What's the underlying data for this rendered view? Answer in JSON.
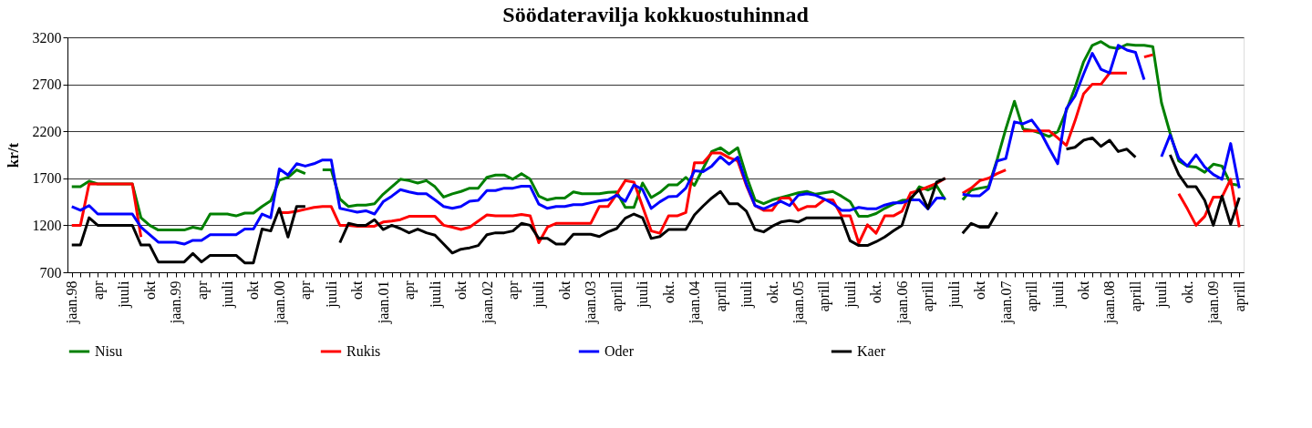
{
  "chart_data": {
    "type": "line",
    "title": "Söödateravilja kokkuostuhinnad",
    "ylabel": "kr/t",
    "categories": [
      "jaan.98",
      null,
      null,
      "apr",
      null,
      null,
      "juuli",
      null,
      null,
      "okt",
      null,
      null,
      "jaan.99",
      null,
      null,
      "apr",
      null,
      null,
      "juuli",
      null,
      null,
      "okt",
      null,
      null,
      "jaan.00",
      null,
      null,
      "apr",
      null,
      null,
      "juuli",
      null,
      null,
      "okt",
      null,
      null,
      "jaan.01",
      null,
      null,
      "apr",
      null,
      null,
      "juuli",
      null,
      null,
      "okt",
      null,
      null,
      "jaan.02",
      null,
      null,
      "apr",
      null,
      null,
      "juuli",
      null,
      null,
      "okt",
      null,
      null,
      "jaan.03",
      null,
      null,
      "aprill",
      null,
      null,
      "juuli",
      null,
      null,
      "okt.",
      null,
      null,
      "jaan.04",
      null,
      null,
      "aprill",
      null,
      null,
      "juuli",
      null,
      null,
      "okt.",
      null,
      null,
      "jaan.05",
      null,
      null,
      "aprill",
      null,
      null,
      "juuli",
      null,
      null,
      "okt.",
      null,
      null,
      "jaan.06",
      null,
      null,
      "aprill",
      null,
      null,
      "juuli",
      null,
      null,
      "okt",
      null,
      null,
      "jaan.07",
      null,
      null,
      "aprill",
      null,
      null,
      "juuli",
      null,
      null,
      "okt",
      null,
      null,
      "jaan.08",
      null,
      null,
      "aprill",
      null,
      null,
      "juuli",
      null,
      null,
      "okt.",
      null,
      null,
      "jaan.09",
      null,
      null,
      "aprill"
    ],
    "ylim": [
      700,
      3200
    ],
    "yticks": [
      700,
      1200,
      1700,
      2200,
      2700,
      3200
    ],
    "grid": "y",
    "legend": "bottom",
    "series": [
      {
        "name": "Nisu",
        "color": "#008000",
        "values": [
          1610,
          1610,
          1670,
          1640,
          1640,
          1640,
          1640,
          1640,
          1280,
          1200,
          1150,
          1150,
          1150,
          1150,
          1180,
          1160,
          1320,
          1320,
          1320,
          1300,
          1330,
          1330,
          1400,
          1460,
          1680,
          1710,
          1790,
          1750,
          null,
          1790,
          1790,
          1480,
          1400,
          1415,
          1415,
          1430,
          1530,
          1610,
          1690,
          1675,
          1650,
          1675,
          1610,
          1500,
          1535,
          1560,
          1595,
          1595,
          1710,
          1735,
          1735,
          1690,
          1750,
          1690,
          1510,
          1470,
          1490,
          1490,
          1555,
          1535,
          1535,
          1535,
          1550,
          1555,
          1390,
          1390,
          1650,
          1495,
          1550,
          1630,
          1630,
          1710,
          1625,
          1805,
          1985,
          2025,
          1960,
          2025,
          1725,
          1470,
          1430,
          1470,
          1495,
          1520,
          1545,
          1560,
          1530,
          1545,
          1560,
          1510,
          1450,
          1295,
          1295,
          1325,
          1380,
          1425,
          1465,
          1470,
          1610,
          1575,
          1620,
          1470,
          null,
          1470,
          1575,
          1595,
          1610,
          1900,
          2225,
          2520,
          2225,
          2210,
          2180,
          2145,
          2195,
          2420,
          2665,
          2940,
          3115,
          3155,
          3095,
          3080,
          3125,
          3115,
          3115,
          3100,
          2505,
          2180,
          1885,
          1830,
          1820,
          1765,
          1850,
          1830,
          1640,
          1625
        ]
      },
      {
        "name": "Rukis",
        "color": "#ff0000",
        "values": [
          1200,
          1200,
          1640,
          1640,
          1640,
          1640,
          1640,
          1640,
          1075,
          null,
          null,
          null,
          null,
          null,
          null,
          null,
          null,
          null,
          null,
          null,
          null,
          null,
          null,
          null,
          1335,
          1335,
          1350,
          1370,
          1390,
          1400,
          1400,
          1200,
          1200,
          1190,
          1190,
          1190,
          1235,
          1245,
          1260,
          1295,
          1295,
          1295,
          1295,
          1200,
          1180,
          1155,
          1180,
          1245,
          1310,
          1300,
          1300,
          1300,
          1315,
          1300,
          1015,
          1180,
          1220,
          1220,
          1220,
          1220,
          1220,
          1400,
          1400,
          1530,
          1675,
          1660,
          1400,
          1140,
          1115,
          1300,
          1300,
          1335,
          1865,
          1865,
          1970,
          1970,
          1920,
          1885,
          1625,
          1410,
          1360,
          1360,
          1490,
          1490,
          1360,
          1400,
          1400,
          1470,
          1470,
          1300,
          1300,
          1010,
          1205,
          1115,
          1300,
          1300,
          1350,
          1545,
          1570,
          1610,
          1645,
          1700,
          null,
          1540,
          1595,
          1675,
          1700,
          1750,
          1790,
          null,
          2205,
          2205,
          2205,
          2205,
          2130,
          2050,
          2310,
          2600,
          2700,
          2700,
          2820,
          2820,
          2820,
          null,
          2990,
          3015,
          null,
          null,
          1535,
          1375,
          1200,
          1295,
          1500,
          1500,
          1690,
          1180
        ]
      },
      {
        "name": "Oder",
        "color": "#0000ff",
        "values": [
          1400,
          1360,
          1410,
          1320,
          1320,
          1320,
          1320,
          1320,
          1180,
          1100,
          1020,
          1020,
          1020,
          1000,
          1040,
          1040,
          1100,
          1100,
          1100,
          1100,
          1160,
          1160,
          1320,
          1280,
          1800,
          1735,
          1855,
          1830,
          1855,
          1895,
          1895,
          1380,
          1360,
          1340,
          1355,
          1320,
          1450,
          1510,
          1580,
          1555,
          1535,
          1535,
          1470,
          1400,
          1380,
          1400,
          1455,
          1465,
          1570,
          1570,
          1595,
          1595,
          1615,
          1615,
          1425,
          1380,
          1400,
          1400,
          1420,
          1420,
          1440,
          1460,
          1470,
          1520,
          1455,
          1630,
          1580,
          1380,
          1450,
          1505,
          1510,
          1595,
          1780,
          1770,
          1830,
          1930,
          1850,
          1925,
          1640,
          1410,
          1375,
          1415,
          1455,
          1410,
          1520,
          1535,
          1520,
          1480,
          1430,
          1360,
          1360,
          1390,
          1375,
          1375,
          1415,
          1440,
          1440,
          1470,
          1470,
          1375,
          1490,
          1490,
          null,
          1530,
          1515,
          1515,
          1590,
          1885,
          1910,
          2300,
          2280,
          2320,
          2195,
          2020,
          1855,
          2440,
          2575,
          2810,
          3030,
          2860,
          2820,
          3115,
          3065,
          3040,
          2750,
          null,
          1930,
          2160,
          1915,
          1830,
          1950,
          1820,
          1740,
          1690,
          2070,
          1595
        ]
      },
      {
        "name": "Kaer",
        "color": "#000000",
        "values": [
          990,
          990,
          1280,
          1200,
          1200,
          1200,
          1200,
          1200,
          990,
          990,
          810,
          810,
          810,
          810,
          900,
          810,
          880,
          880,
          880,
          880,
          800,
          800,
          1160,
          1140,
          1380,
          1075,
          1400,
          1400,
          null,
          null,
          null,
          1015,
          1220,
          1200,
          1200,
          1260,
          1155,
          1200,
          1165,
          1120,
          1160,
          1120,
          1095,
          1000,
          905,
          945,
          960,
          985,
          1100,
          1120,
          1120,
          1140,
          1220,
          1200,
          1060,
          1060,
          1000,
          1000,
          1105,
          1105,
          1105,
          1080,
          1130,
          1165,
          1275,
          1320,
          1280,
          1060,
          1080,
          1155,
          1155,
          1155,
          1310,
          1405,
          1490,
          1560,
          1430,
          1430,
          1350,
          1155,
          1130,
          1190,
          1235,
          1250,
          1235,
          1280,
          1280,
          1280,
          1280,
          1280,
          1035,
          985,
          985,
          1025,
          1075,
          1140,
          1200,
          1490,
          1580,
          1380,
          1660,
          1700,
          null,
          1115,
          1220,
          1180,
          1180,
          1340,
          null,
          null,
          null,
          null,
          null,
          null,
          null,
          2010,
          2030,
          2105,
          2130,
          2040,
          2105,
          1985,
          2010,
          1925,
          null,
          null,
          null,
          1950,
          1740,
          1610,
          1610,
          1465,
          1200,
          1510,
          1210,
          1495
        ]
      }
    ]
  }
}
